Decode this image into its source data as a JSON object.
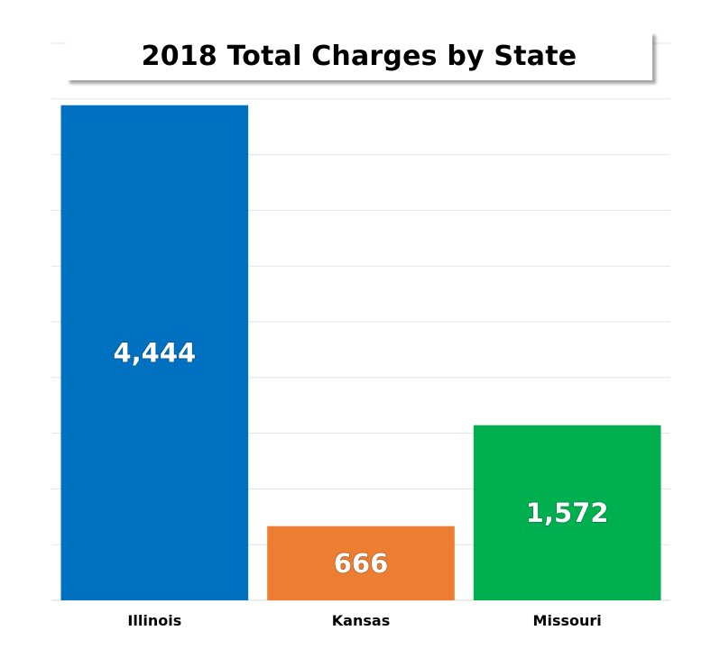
{
  "chart_data": {
    "type": "bar",
    "title": "2018 Total Charges by State",
    "categories": [
      "Illinois",
      "Kansas",
      "Missouri"
    ],
    "values": [
      4444,
      666,
      1572
    ],
    "value_labels": [
      "4,444",
      "666",
      "1,572"
    ],
    "colors": [
      "#0070C0",
      "#ED7D31",
      "#00B050"
    ],
    "ylim": [
      0,
      5000
    ],
    "grid": true,
    "legend": "none",
    "xlabel": "",
    "ylabel": ""
  }
}
